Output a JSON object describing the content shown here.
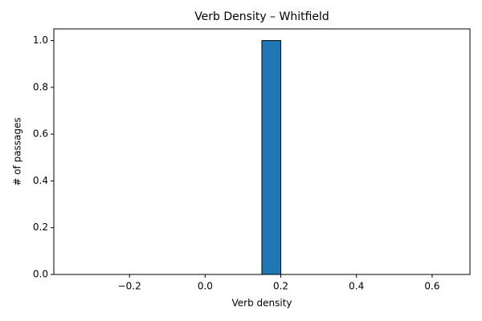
{
  "chart_data": {
    "type": "histogram",
    "title": "Verb Density – Whitfield",
    "xlabel": "Verb density",
    "ylabel": "# of passages",
    "bins": [
      -0.35,
      -0.3,
      -0.25,
      -0.2,
      -0.15,
      -0.1,
      -0.05,
      0,
      0.05,
      0.1,
      0.15,
      0.2,
      0.25,
      0.3,
      0.35,
      0.4,
      0.45,
      0.5,
      0.55,
      0.6,
      0.65
    ],
    "counts": [
      0,
      0,
      0,
      0,
      0,
      0,
      0,
      0,
      0,
      0,
      1,
      0,
      0,
      0,
      0,
      0,
      0,
      0,
      0,
      0
    ],
    "color": "#1f77b4",
    "edgecolor": "#000000",
    "xlim": [
      -0.4,
      0.7
    ],
    "xticks": [
      {
        "value": -0.2,
        "label": "−0.2"
      },
      {
        "value": 0,
        "label": "0.0"
      },
      0.2,
      0.4,
      0.6
    ],
    "ylim": [
      0,
      1.05
    ],
    "yticks": [
      {
        "value": 0,
        "label": "0.0"
      },
      0.2,
      0.4,
      0.6,
      0.8,
      {
        "value": 1,
        "label": "1.0"
      }
    ]
  }
}
